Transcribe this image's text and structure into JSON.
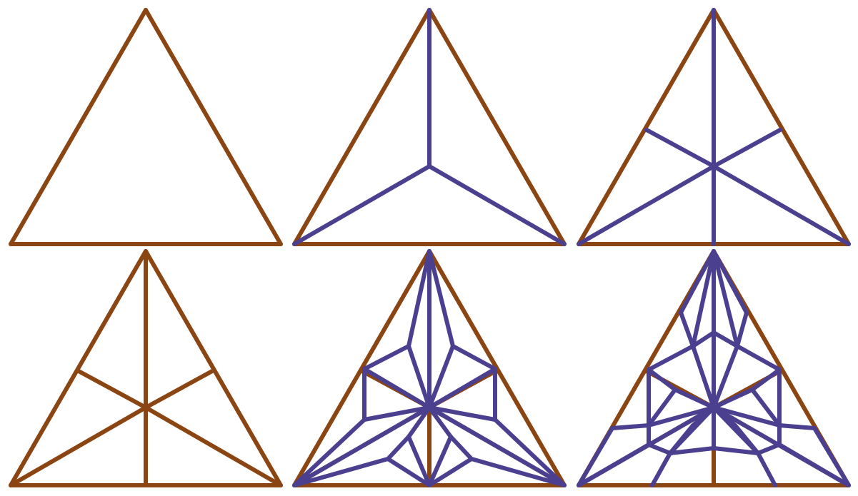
{
  "colors": {
    "background": "#ffffff",
    "triangle_edge": "#8B4513",
    "dual_edge": "#4B3F8F"
  },
  "figure": {
    "description_visible_text": "",
    "panels": [
      {
        "id": "panel-1",
        "layer": "triangle"
      },
      {
        "id": "panel-2",
        "layer": "dual-of-triangle"
      },
      {
        "id": "panel-3",
        "layer": "barycentric-subdivision-dual"
      },
      {
        "id": "panel-4",
        "layer": "barycentric-subdivision"
      },
      {
        "id": "panel-5",
        "layer": "subdivision-with-dual"
      },
      {
        "id": "panel-6",
        "layer": "second-subdivision-dual"
      }
    ]
  }
}
